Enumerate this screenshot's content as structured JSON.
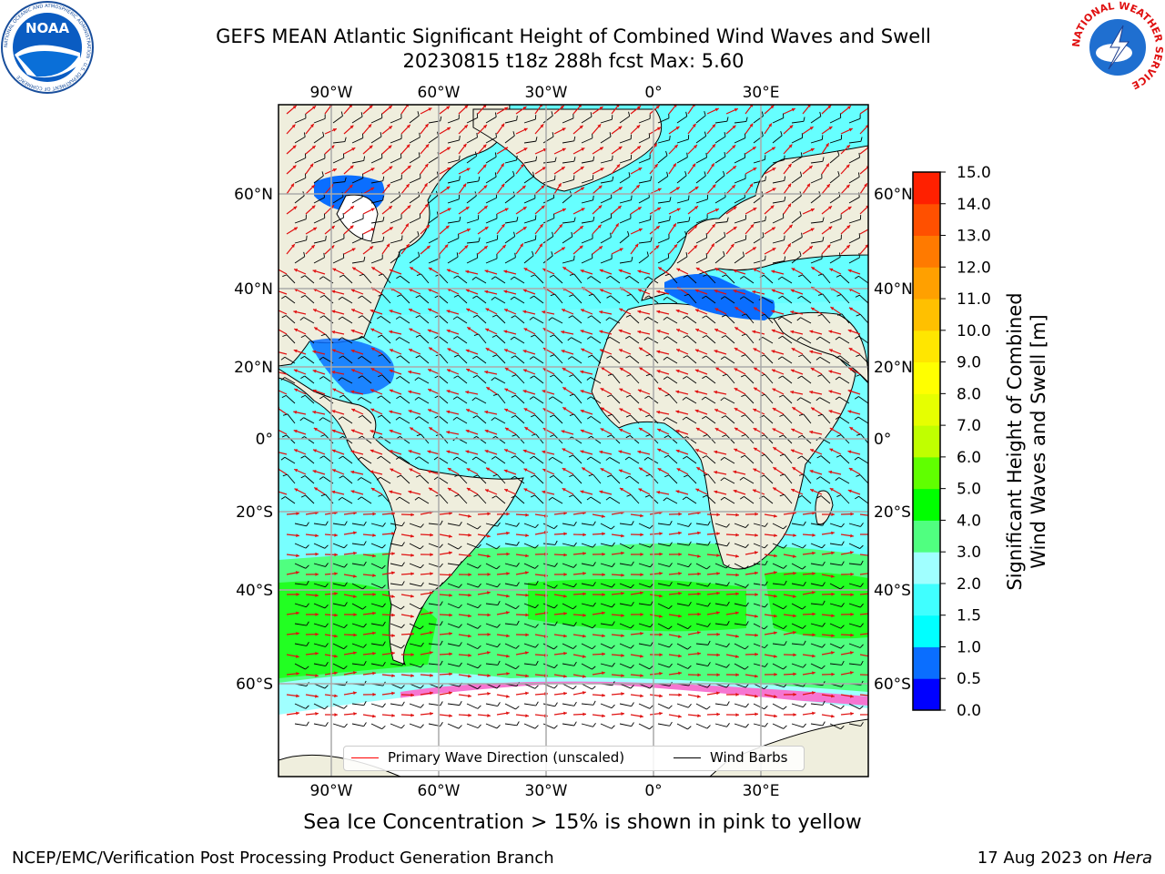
{
  "title_line1": "GEFS MEAN Atlantic Significant Height of Combined Wind Waves and Swell",
  "title_line2": "20230815 t18z 288h fcst   Max: 5.60",
  "logos": {
    "left": "NOAA",
    "left_ring": "NATIONAL OCEANIC AND ATMOSPHERIC ADMINISTRATION · U.S. DEPARTMENT OF COMMERCE",
    "right_ring": "NATIONAL WEATHER SERVICE"
  },
  "map": {
    "lon_labels": [
      "90°W",
      "60°W",
      "30°W",
      "0°",
      "30°E"
    ],
    "lat_labels": [
      "60°N",
      "40°N",
      "20°N",
      "0°",
      "20°S",
      "40°S",
      "60°S"
    ],
    "lon_values": [
      -90,
      -60,
      -30,
      0,
      30
    ],
    "lat_values": [
      60,
      40,
      20,
      0,
      -20,
      -40,
      -60
    ]
  },
  "legend": {
    "wave_label": "Primary Wave Direction (unscaled)",
    "barb_label": "Wind Barbs",
    "wave_color": "#ff0000",
    "barb_color": "#000000"
  },
  "colorbar": {
    "title_line1": "Significant Height of Combined",
    "title_line2": "Wind Waves and Swell [m]",
    "ticks": [
      "0.0",
      "0.5",
      "1.0",
      "1.5",
      "2.0",
      "3.0",
      "4.0",
      "5.0",
      "6.0",
      "7.0",
      "8.0",
      "9.0",
      "10.0",
      "11.0",
      "12.0",
      "13.0",
      "14.0",
      "15.0"
    ],
    "colors": [
      "#0000ff",
      "#0a6eff",
      "#00ffff",
      "#40ffff",
      "#a0ffff",
      "#50ff80",
      "#00ff00",
      "#60ff00",
      "#c0ff00",
      "#e6ff00",
      "#ffff00",
      "#ffe600",
      "#ffc000",
      "#ffa000",
      "#ff7a00",
      "#ff5000",
      "#ff2000"
    ]
  },
  "subtitle": "Sea Ice Concentration > 15% is shown in pink to yellow",
  "footer": {
    "left": "NCEP/EMC/Verification Post Processing Product Generation Branch",
    "right_date": "17 Aug 2023 on",
    "right_machine": "Hera"
  }
}
